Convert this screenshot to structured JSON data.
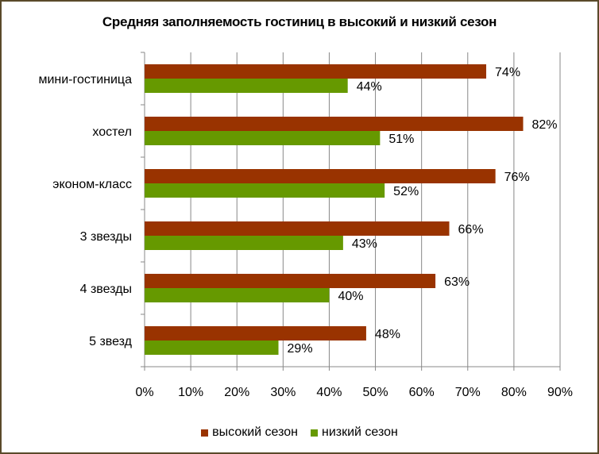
{
  "chart_data": {
    "type": "bar",
    "orientation": "horizontal",
    "title": "Средняя заполняемость гостиниц в высокий и низкий сезон",
    "categories": [
      "мини-гостиница",
      "хостел",
      "эконом-класс",
      "3 звезды",
      "4 звезды",
      "5 звезд"
    ],
    "series": [
      {
        "name": "высокий сезон",
        "color": "#993300",
        "values": [
          74,
          82,
          76,
          66,
          63,
          48
        ]
      },
      {
        "name": "низкий сезон",
        "color": "#669900",
        "values": [
          44,
          51,
          52,
          43,
          40,
          29
        ]
      }
    ],
    "value_labels": [
      [
        "74%",
        "82%",
        "76%",
        "66%",
        "63%",
        "48%"
      ],
      [
        "44%",
        "51%",
        "52%",
        "43%",
        "40%",
        "29%"
      ]
    ],
    "xlim": [
      0,
      90
    ],
    "xticks": [
      0,
      10,
      20,
      30,
      40,
      50,
      60,
      70,
      80,
      90
    ],
    "xtick_labels": [
      "0%",
      "10%",
      "20%",
      "30%",
      "40%",
      "50%",
      "60%",
      "70%",
      "80%",
      "90%"
    ],
    "grid": "vertical",
    "legend_position": "bottom",
    "gridline_color": "#888888"
  }
}
